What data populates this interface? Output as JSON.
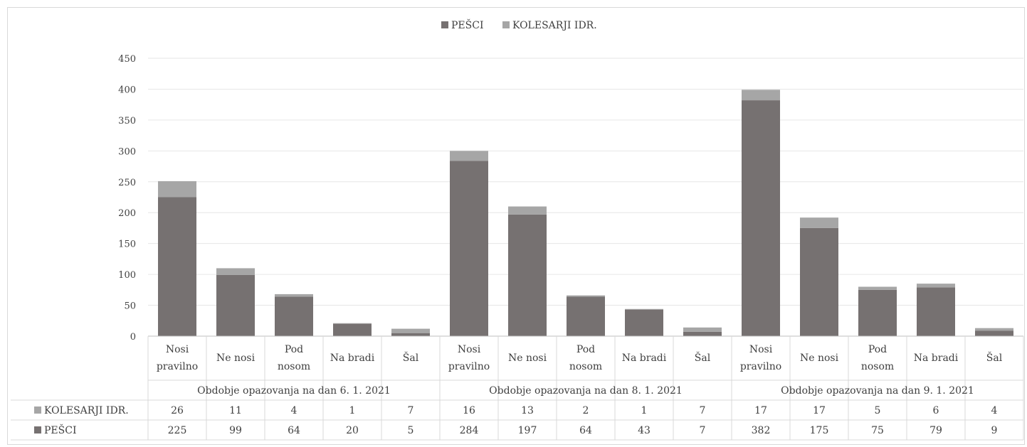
{
  "chart_data": {
    "type": "bar",
    "stacked": true,
    "ylim": [
      0,
      450
    ],
    "yticks": [
      0,
      50,
      100,
      150,
      200,
      250,
      300,
      350,
      400,
      450
    ],
    "grid": true,
    "legend_position": "top",
    "groups": [
      {
        "label": "Obdobje opazovanja na dan 6. 1. 2021",
        "categories": [
          [
            "Nosi",
            "pravilno"
          ],
          [
            "Ne nosi"
          ],
          [
            "Pod",
            "nosom"
          ],
          [
            "Na bradi"
          ],
          [
            "Šal"
          ]
        ]
      },
      {
        "label": "Obdobje opazovanja na dan 8. 1. 2021",
        "categories": [
          [
            "Nosi",
            "pravilno"
          ],
          [
            "Ne nosi"
          ],
          [
            "Pod",
            "nosom"
          ],
          [
            "Na bradi"
          ],
          [
            "Šal"
          ]
        ]
      },
      {
        "label": "Obdobje opazovanja na dan 9. 1. 2021",
        "categories": [
          [
            "Nosi",
            "pravilno"
          ],
          [
            "Ne nosi"
          ],
          [
            "Pod",
            "nosom"
          ],
          [
            "Na bradi"
          ],
          [
            "Šal"
          ]
        ]
      }
    ],
    "series": [
      {
        "name": "PEŠCI",
        "color": "#767171",
        "values": [
          225,
          99,
          64,
          20,
          5,
          284,
          197,
          64,
          43,
          7,
          382,
          175,
          75,
          79,
          9
        ]
      },
      {
        "name": "KOLESARJI IDR.",
        "color": "#a6a6a6",
        "values": [
          26,
          11,
          4,
          1,
          7,
          16,
          13,
          2,
          1,
          7,
          17,
          17,
          5,
          6,
          4
        ]
      }
    ],
    "table_rows": [
      "KOLESARJI IDR.",
      "PEŠCI"
    ]
  }
}
